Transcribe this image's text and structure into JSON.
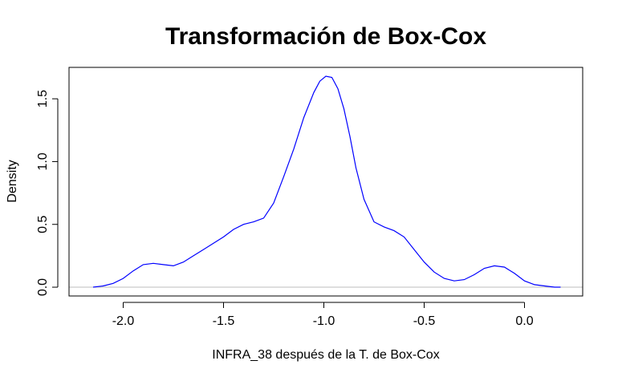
{
  "chart_data": {
    "type": "line",
    "title": "Transformación de Box-Cox",
    "xlabel": "INFRA_38 después de la T. de Box-Cox",
    "ylabel": "Density",
    "xlim": [
      -2.27,
      0.29
    ],
    "ylim": [
      -0.07,
      1.75
    ],
    "x_ticks": [
      -2.0,
      -1.5,
      -1.0,
      -0.5,
      0.0
    ],
    "x_tick_labels": [
      "-2.0",
      "-1.5",
      "-1.0",
      "-0.5",
      "0.0"
    ],
    "y_ticks": [
      0.0,
      0.5,
      1.0,
      1.5
    ],
    "y_tick_labels": [
      "0.0",
      "0.5",
      "1.0",
      "1.5"
    ],
    "baseline": 0,
    "grid": false,
    "colors": {
      "line": "#0000ff",
      "baseline": "#bebebe",
      "frame": "#000000"
    },
    "series": [
      {
        "x": [
          -2.15,
          -2.1,
          -2.05,
          -2.0,
          -1.95,
          -1.9,
          -1.85,
          -1.8,
          -1.75,
          -1.7,
          -1.65,
          -1.6,
          -1.55,
          -1.5,
          -1.45,
          -1.4,
          -1.35,
          -1.3,
          -1.25,
          -1.2,
          -1.15,
          -1.1,
          -1.05,
          -1.02,
          -0.99,
          -0.96,
          -0.93,
          -0.9,
          -0.87,
          -0.84,
          -0.8,
          -0.75,
          -0.7,
          -0.65,
          -0.6,
          -0.55,
          -0.5,
          -0.45,
          -0.4,
          -0.35,
          -0.3,
          -0.25,
          -0.2,
          -0.15,
          -0.1,
          -0.05,
          0.0,
          0.05,
          0.1,
          0.15,
          0.18
        ],
        "y": [
          0.0,
          0.01,
          0.03,
          0.07,
          0.13,
          0.18,
          0.19,
          0.18,
          0.17,
          0.2,
          0.25,
          0.3,
          0.35,
          0.4,
          0.46,
          0.5,
          0.52,
          0.55,
          0.67,
          0.88,
          1.1,
          1.35,
          1.55,
          1.64,
          1.68,
          1.67,
          1.58,
          1.42,
          1.2,
          0.95,
          0.7,
          0.52,
          0.48,
          0.45,
          0.4,
          0.3,
          0.2,
          0.12,
          0.07,
          0.05,
          0.06,
          0.1,
          0.15,
          0.17,
          0.16,
          0.11,
          0.05,
          0.02,
          0.01,
          0.0,
          0.0
        ]
      }
    ]
  }
}
